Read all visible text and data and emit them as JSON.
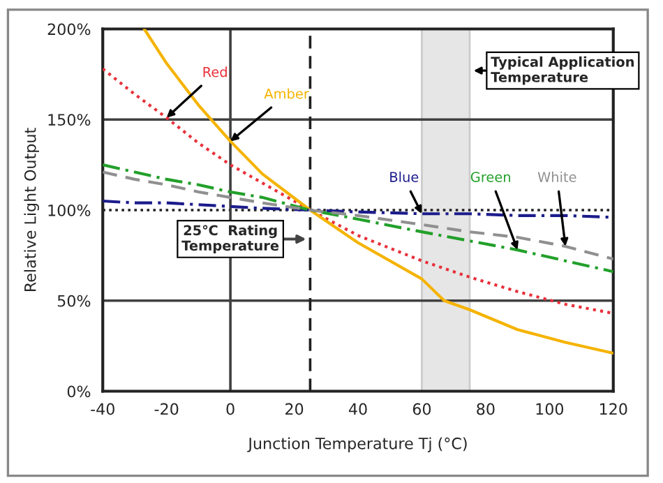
{
  "chart_data": {
    "type": "line",
    "xlabel": "Junction Temperature Tj (°C)",
    "ylabel": "Relative Light Output",
    "xlim": [
      -40,
      120
    ],
    "xticks": [
      -40,
      -20,
      0,
      20,
      40,
      60,
      80,
      100,
      120
    ],
    "ylim": [
      0,
      200
    ],
    "yticks": [
      {
        "value": 0,
        "label": "0%"
      },
      {
        "value": 50,
        "label": "50%"
      },
      {
        "value": 100,
        "label": "100%"
      },
      {
        "value": 150,
        "label": "150%"
      },
      {
        "value": 200,
        "label": "200%"
      }
    ],
    "grid": false,
    "legend": false,
    "marker": "none",
    "x": [
      -40,
      -30,
      -20,
      -10,
      0,
      10,
      25,
      40,
      60,
      75,
      90,
      105,
      120
    ],
    "series": [
      {
        "name": "Red",
        "color": "#e8303a",
        "line_style": "dotted",
        "values": [
          178,
          164,
          151,
          137,
          125,
          115,
          100,
          86,
          72,
          63,
          55,
          48,
          43
        ]
      },
      {
        "name": "Amber",
        "color": "#f5b300",
        "line_style": "solid",
        "x": [
          -27,
          -20,
          -10,
          0,
          10,
          25,
          40,
          60,
          67,
          75,
          90,
          105,
          120
        ],
        "values": [
          200,
          181,
          158,
          138,
          120,
          100,
          82,
          62,
          50,
          45,
          34,
          27,
          21
        ]
      },
      {
        "name": "Blue",
        "color": "#1c1c8c",
        "line_style": "dashdot",
        "values": [
          105,
          104,
          104,
          103,
          102,
          101,
          100,
          99,
          98,
          98,
          97,
          97,
          96
        ]
      },
      {
        "name": "Green",
        "color": "#22a02a",
        "line_style": "dashdot",
        "values": [
          125,
          121,
          117,
          114,
          110,
          107,
          100,
          95,
          88,
          83,
          78,
          72,
          66
        ]
      },
      {
        "name": "White",
        "color": "#909090",
        "line_style": "dashed",
        "values": [
          121,
          117,
          114,
          110,
          107,
          104,
          100,
          97,
          92,
          88,
          85,
          80,
          73
        ]
      }
    ],
    "ref_lines": [
      {
        "axis": "y",
        "value": 50,
        "color": "#404040",
        "line_style": "solid"
      },
      {
        "axis": "y",
        "value": 150,
        "color": "#404040",
        "line_style": "solid"
      },
      {
        "axis": "y",
        "value": 100,
        "color": "#202020",
        "line_style": "dotted"
      },
      {
        "axis": "x",
        "value": 0,
        "color": "#404040",
        "line_style": "solid"
      },
      {
        "axis": "x",
        "value": 25,
        "color": "#202020",
        "line_style": "dashed",
        "label": "25℃  Rating\nTemperature"
      }
    ],
    "bands": [
      {
        "axis": "x",
        "from": 60,
        "to": 75,
        "color": "#e6e6e6",
        "label": "Typical Application\nTemperature"
      }
    ]
  }
}
